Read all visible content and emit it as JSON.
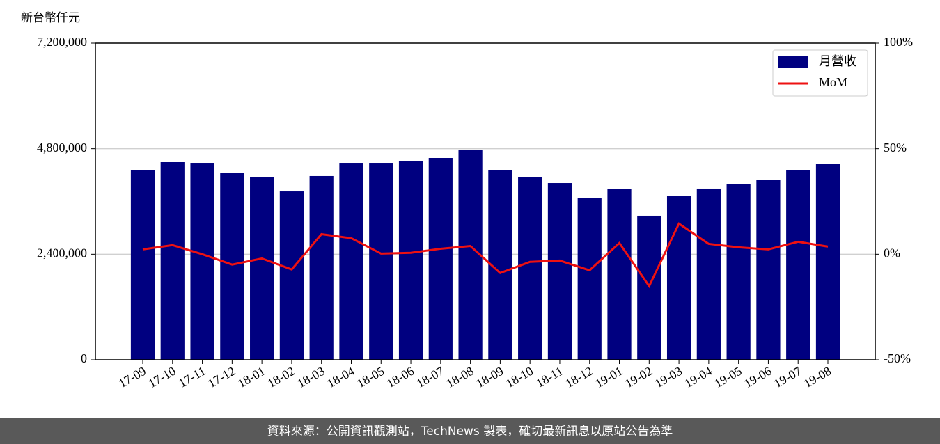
{
  "chart_data": {
    "type": "bar",
    "ylabel": "新台幣仟元",
    "categories": [
      "17-09",
      "17-10",
      "17-11",
      "17-12",
      "18-01",
      "18-02",
      "18-03",
      "18-04",
      "18-05",
      "18-06",
      "18-07",
      "18-08",
      "18-09",
      "18-10",
      "18-11",
      "18-12",
      "19-01",
      "19-02",
      "19-03",
      "19-04",
      "19-05",
      "19-06",
      "19-07",
      "19-08"
    ],
    "series": [
      {
        "name": "月營收",
        "type": "bar",
        "color": "#000080",
        "values": [
          4320000,
          4494000,
          4478000,
          4241000,
          4146000,
          3829000,
          4178000,
          4478000,
          4478000,
          4510000,
          4589000,
          4763000,
          4320000,
          4146000,
          4019000,
          3687000,
          3877000,
          3276000,
          3734000,
          3893000,
          4003000,
          4098000,
          4320000,
          4462000
        ]
      },
      {
        "name": "MoM",
        "type": "line",
        "axis": "y2",
        "color": "#ee1111",
        "values": [
          2.3,
          4.3,
          0,
          -4.9,
          -2.0,
          -7.2,
          9.5,
          7.6,
          0.3,
          0.7,
          2.6,
          3.9,
          -8.9,
          -3.6,
          -3.0,
          -7.6,
          5.3,
          -15.1,
          14.5,
          4.9,
          3.3,
          2.3,
          5.9,
          3.6
        ]
      }
    ],
    "ylim": [
      0,
      7200000
    ],
    "yticks": [
      0,
      {
        "value": 2400000,
        "label": "2,400,000"
      },
      {
        "value": 4800000,
        "label": "4,800,000"
      },
      {
        "value": 7200000,
        "label": "7,200,000"
      }
    ],
    "y2lim": [
      -50,
      100
    ],
    "y2ticks": [
      {
        "value": -50,
        "label": "-50%"
      },
      {
        "value": 0,
        "label": "0%"
      },
      {
        "value": 50,
        "label": "50%"
      },
      {
        "value": 100,
        "label": "100%"
      }
    ],
    "grid": true,
    "legend": "upper right",
    "footer": "資料來源：公開資訊觀測站，TechNews 製表，確切最新訊息以原站公告為準"
  }
}
